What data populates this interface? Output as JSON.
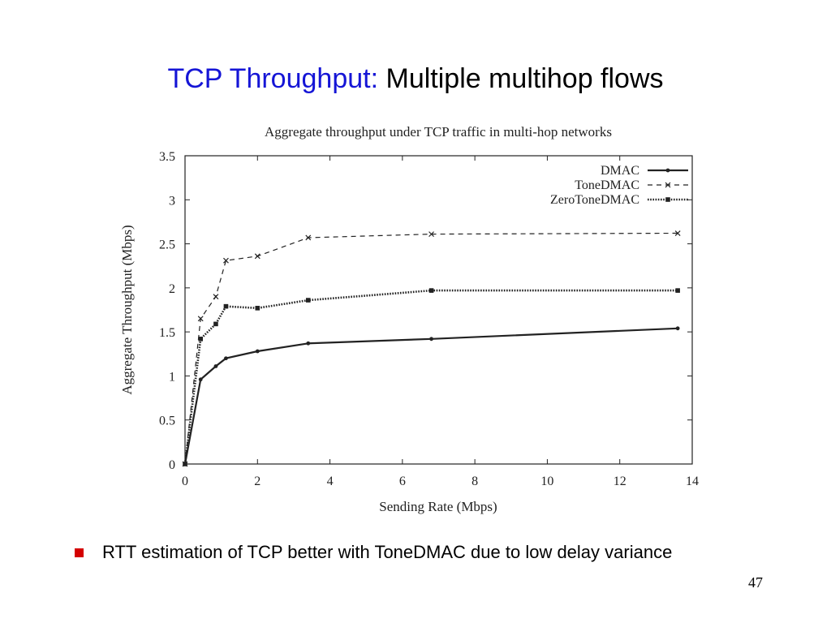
{
  "slide": {
    "title_prefix": "TCP Throughput:",
    "title_rest": " Multiple multihop flows",
    "bullet": "RTT estimation of TCP better with ToneDMAC due to low delay variance",
    "page_number": "47",
    "accent_color": "#1515d6",
    "bullet_color": "#d40000"
  },
  "chart_data": {
    "type": "line",
    "title": "Aggregate throughput under TCP traffic in multi-hop networks",
    "xlabel": "Sending Rate (Mbps)",
    "ylabel": "Aggregate Throughput (Mbps)",
    "xlim": [
      0,
      14
    ],
    "ylim": [
      0,
      3.5
    ],
    "xticks": [
      0,
      2,
      4,
      6,
      8,
      10,
      12,
      14
    ],
    "yticks": [
      0,
      0.5,
      1,
      1.5,
      2,
      2.5,
      3,
      3.5
    ],
    "xtick_labels": [
      "0",
      "2",
      "4",
      "6",
      "8",
      "10",
      "12",
      "14"
    ],
    "ytick_labels": [
      "0",
      "0.5",
      "1",
      "1.5",
      "2",
      "2.5",
      "3",
      "3.5"
    ],
    "grid": false,
    "legend_position": "top-right",
    "series": [
      {
        "name": "DMAC",
        "style": "solid",
        "marker": "dot",
        "x": [
          0,
          0.43,
          0.85,
          1.13,
          2.0,
          3.4,
          6.8,
          13.6
        ],
        "y": [
          0,
          0.96,
          1.11,
          1.2,
          1.28,
          1.37,
          1.42,
          1.54
        ]
      },
      {
        "name": "ToneDMAC",
        "style": "dashed",
        "marker": "cross",
        "x": [
          0,
          0.43,
          0.85,
          1.13,
          2.0,
          3.4,
          6.8,
          13.6
        ],
        "y": [
          0,
          1.65,
          1.9,
          2.31,
          2.36,
          2.57,
          2.61,
          2.62
        ]
      },
      {
        "name": "ZeroToneDMAC",
        "style": "dotted",
        "marker": "square",
        "x": [
          0,
          0.43,
          0.85,
          1.13,
          2.0,
          3.4,
          6.8,
          13.6
        ],
        "y": [
          0,
          1.42,
          1.59,
          1.79,
          1.77,
          1.86,
          1.97,
          1.97
        ]
      }
    ]
  }
}
